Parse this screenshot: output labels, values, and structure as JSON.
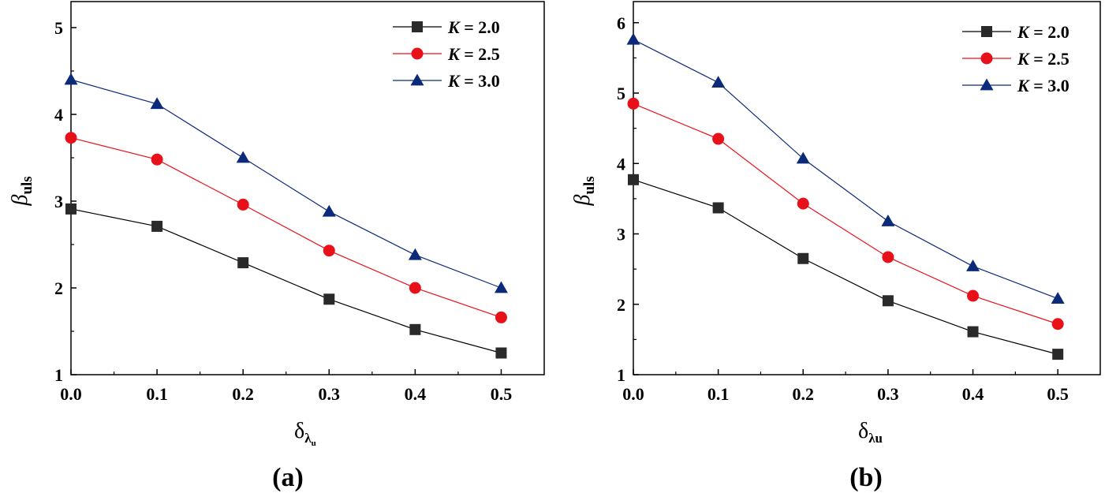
{
  "chart_data": [
    {
      "type": "line",
      "panel_label": "(a)",
      "x": [
        0.0,
        0.1,
        0.2,
        0.3,
        0.4,
        0.5
      ],
      "xlim": [
        0.0,
        0.55
      ],
      "ylim": [
        1,
        5.3
      ],
      "x_ticks": [
        "0.0",
        "0.1",
        "0.2",
        "0.3",
        "0.4",
        "0.5"
      ],
      "y_ticks": [
        "1",
        "2",
        "3",
        "4",
        "5"
      ],
      "xlabel": {
        "main": "δ",
        "sub": "λ",
        "subsub": "u"
      },
      "ylabel": {
        "main": "β",
        "sub": "uls"
      },
      "legend_position": "top-right",
      "series": [
        {
          "name": "K = 2.0",
          "prefix": "K",
          "suffix": " = 2.0",
          "color": "#000000",
          "marker": "square",
          "marker_color": "#2a2a2a",
          "values": [
            2.91,
            2.71,
            2.29,
            1.87,
            1.52,
            1.25
          ]
        },
        {
          "name": "K = 2.5",
          "prefix": "K",
          "suffix": " = 2.5",
          "color": "#e8111a",
          "marker": "circle",
          "marker_color": "#e8111a",
          "values": [
            3.73,
            3.48,
            2.96,
            2.43,
            2.0,
            1.66
          ]
        },
        {
          "name": "K = 3.0",
          "prefix": "K",
          "suffix": " = 3.0",
          "color": "#0c2a7a",
          "marker": "triangle",
          "marker_color": "#0c2a7a",
          "values": [
            4.4,
            4.12,
            3.5,
            2.88,
            2.38,
            2.0
          ]
        }
      ]
    },
    {
      "type": "line",
      "panel_label": "(b)",
      "x": [
        0.0,
        0.1,
        0.2,
        0.3,
        0.4,
        0.5
      ],
      "xlim": [
        0.0,
        0.55
      ],
      "ylim": [
        1,
        6.3
      ],
      "x_ticks": [
        "0.0",
        "0.1",
        "0.2",
        "0.3",
        "0.4",
        "0.5"
      ],
      "y_ticks": [
        "1",
        "2",
        "3",
        "4",
        "5",
        "6"
      ],
      "xlabel": {
        "main": "δ",
        "sub": "λu",
        "subsub": ""
      },
      "ylabel": {
        "main": "β",
        "sub": "uls"
      },
      "legend_position": "top-right",
      "series": [
        {
          "name": "K = 2.0",
          "prefix": "K",
          "suffix": " = 2.0",
          "color": "#000000",
          "marker": "square",
          "marker_color": "#2a2a2a",
          "values": [
            3.77,
            3.37,
            2.65,
            2.05,
            1.61,
            1.29
          ]
        },
        {
          "name": "K = 2.5",
          "prefix": "K",
          "suffix": " = 2.5",
          "color": "#e8111a",
          "marker": "circle",
          "marker_color": "#e8111a",
          "values": [
            4.85,
            4.35,
            3.43,
            2.67,
            2.12,
            1.72
          ]
        },
        {
          "name": "K = 3.0",
          "prefix": "K",
          "suffix": " = 3.0",
          "color": "#0c2a7a",
          "marker": "triangle",
          "marker_color": "#0c2a7a",
          "values": [
            5.76,
            5.15,
            4.07,
            3.18,
            2.54,
            2.08
          ]
        }
      ]
    }
  ]
}
